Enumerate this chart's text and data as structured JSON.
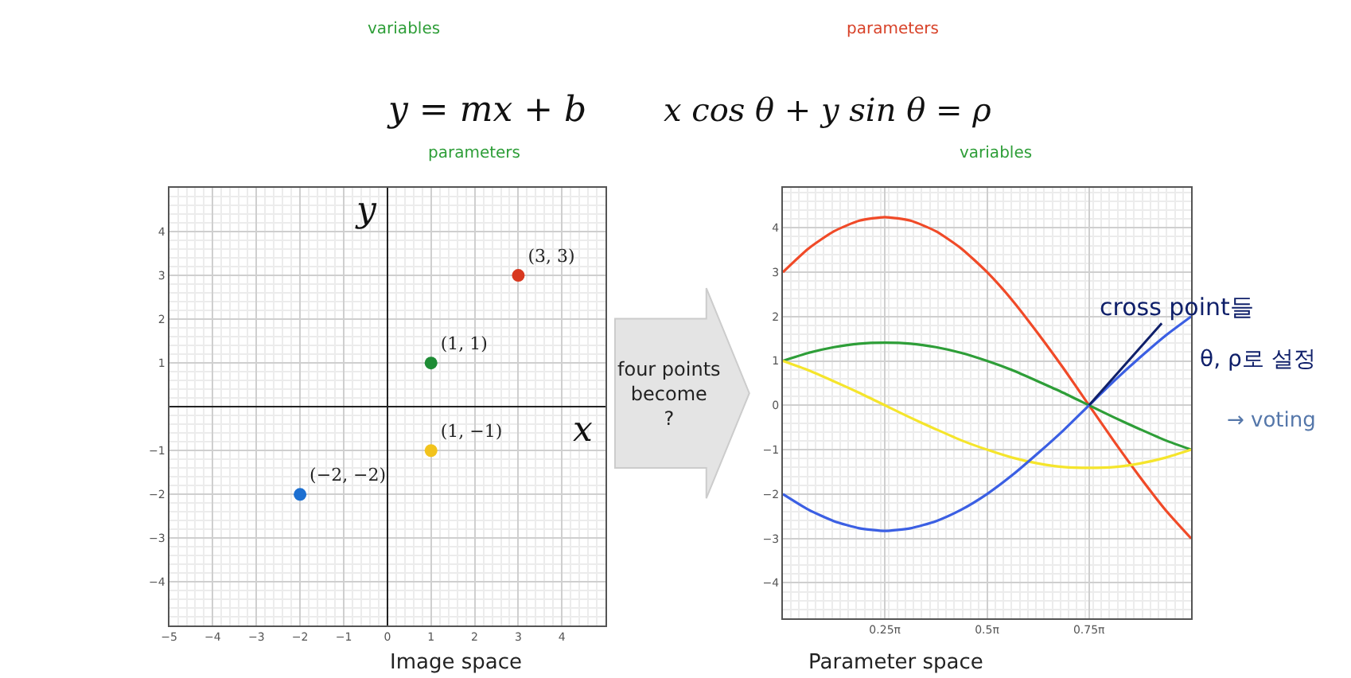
{
  "chart_data": [
    {
      "type": "scatter",
      "title": "Image space",
      "xlabel": "x",
      "ylabel": "y",
      "x": [
        3,
        1,
        1,
        -2
      ],
      "values": [
        3,
        1,
        -1,
        -2
      ],
      "colors": [
        "#d8381f",
        "#1e8c35",
        "#f2c31c",
        "#1c6fd1"
      ],
      "value_labels": [
        "(3, 3)",
        "(1, 1)",
        "(1, −1)",
        "(−2, −2)"
      ],
      "xlim": [
        -5,
        5
      ],
      "ylim": [
        -5,
        5
      ],
      "xticks": [
        -5,
        -4,
        -3,
        -2,
        -1,
        0,
        1,
        2,
        3,
        4
      ],
      "yticks": [
        -4,
        -3,
        -2,
        -1,
        1,
        2,
        3,
        4
      ],
      "grid": true,
      "marker": "circle",
      "annotations": [
        "y = mx + b",
        "variables",
        "parameters",
        "four points become ?"
      ]
    },
    {
      "type": "line",
      "title": "Parameter space",
      "x": [
        0,
        0.196,
        0.393,
        0.589,
        0.785,
        0.982,
        1.178,
        1.374,
        1.571,
        1.767,
        1.963,
        2.16,
        2.356,
        2.553,
        2.749,
        2.945,
        3.142
      ],
      "series": [
        {
          "color": "#f04a28",
          "values": [
            3,
            3.53,
            3.92,
            4.16,
            4.24,
            4.16,
            3.92,
            3.53,
            3,
            2.36,
            1.62,
            0.83,
            0,
            -0.83,
            -1.62,
            -2.36,
            -3
          ]
        },
        {
          "color": "#2e9e38",
          "values": [
            1,
            1.18,
            1.31,
            1.39,
            1.41,
            1.39,
            1.31,
            1.18,
            1,
            0.79,
            0.54,
            0.28,
            0,
            -0.28,
            -0.54,
            -0.79,
            -1
          ]
        },
        {
          "color": "#f5e52c",
          "values": [
            1,
            0.79,
            0.54,
            0.28,
            0,
            -0.28,
            -0.54,
            -0.79,
            -1,
            -1.18,
            -1.31,
            -1.39,
            -1.41,
            -1.39,
            -1.31,
            -1.18,
            -1
          ]
        },
        {
          "color": "#3b5fe3",
          "values": [
            -2,
            -2.35,
            -2.61,
            -2.77,
            -2.83,
            -2.77,
            -2.61,
            -2.35,
            -2,
            -1.57,
            -1.08,
            -0.56,
            0,
            0.56,
            1.08,
            1.57,
            2
          ]
        }
      ],
      "xlim": [
        0,
        3.142
      ],
      "ylim": [
        -4.8,
        4.9
      ],
      "xticks": [
        {
          "value": 0.785,
          "label": "0.25π"
        },
        {
          "value": 1.571,
          "label": "0.5π"
        },
        {
          "value": 2.356,
          "label": "0.75π"
        }
      ],
      "yticks": [
        -4,
        -3,
        -2,
        -1,
        0,
        1,
        2,
        3,
        4
      ],
      "grid": true,
      "marker": "none",
      "line_style": "solid",
      "annotations": [
        "x cos θ + y sin θ = ρ",
        "parameters",
        "variables",
        {
          "text": "cross point들",
          "x": 2.356,
          "y": 0
        },
        "θ, ρ로 설정",
        "→ voting"
      ]
    }
  ]
}
